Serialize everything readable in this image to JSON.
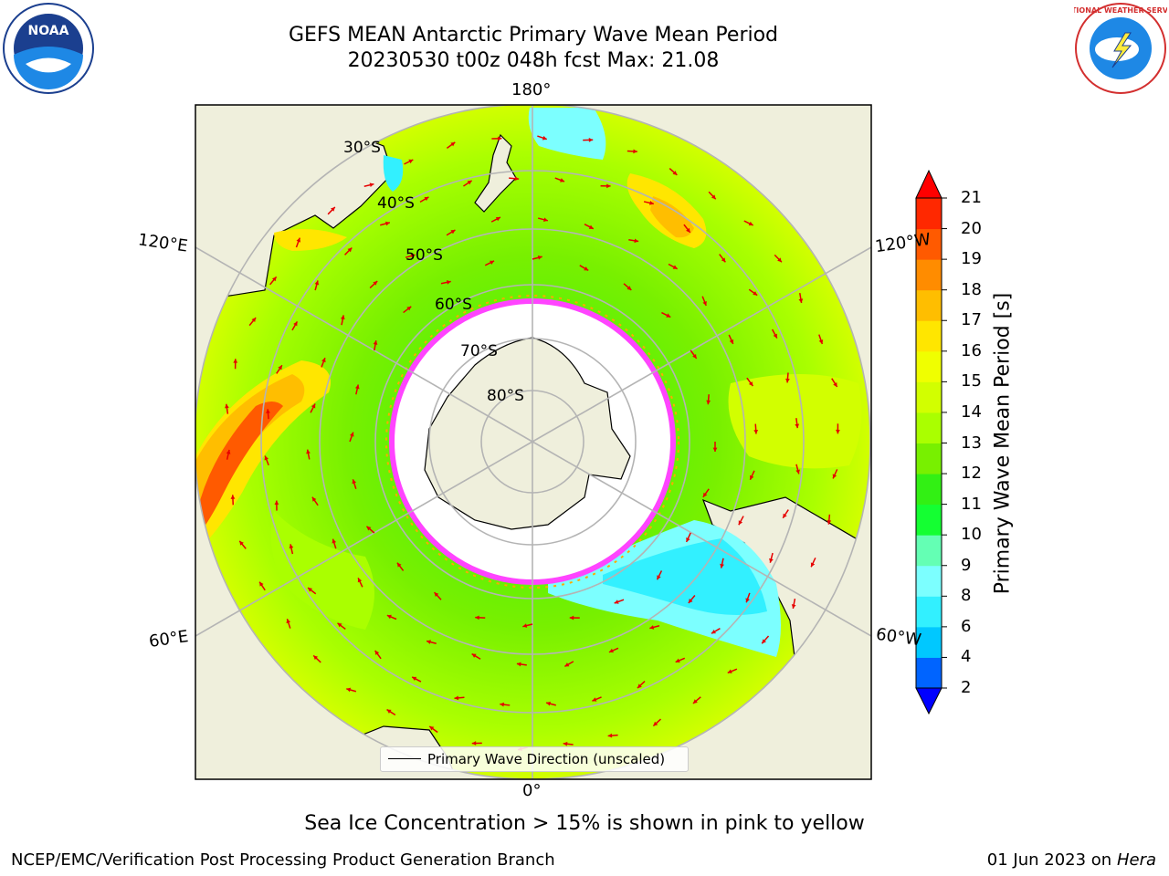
{
  "header": {
    "title_line1": "GEFS MEAN Antarctic Primary Wave Mean Period",
    "title_line2": "20230530 t00z 048h fcst   Max: 21.08"
  },
  "logos": {
    "left": {
      "text": "NOAA",
      "icon": "noaa-logo-icon"
    },
    "right": {
      "text": "NATIONAL WEATHER SERVICE",
      "icon": "nws-logo-icon"
    }
  },
  "map": {
    "projection": "south-polar-stereographic",
    "longitude_labels": [
      "180°",
      "120°E",
      "120°W",
      "60°E",
      "60°W",
      "0°"
    ],
    "latitude_labels": [
      "30°S",
      "40°S",
      "50°S",
      "60°S",
      "70°S",
      "80°S"
    ],
    "land_color": "#efefdc",
    "ice_color": "#ffffff",
    "ice_edge_colors": [
      "#ff44ff",
      "#ffaa00",
      "#ffff00"
    ],
    "arrow_color": "#e60000"
  },
  "colorbar": {
    "title": "Primary Wave Mean Period [s]",
    "ticks": [
      "2",
      "4",
      "6",
      "8",
      "9",
      "10",
      "11",
      "12",
      "13",
      "14",
      "15",
      "16",
      "17",
      "18",
      "19",
      "20",
      "21"
    ],
    "colors": [
      "#0064ff",
      "#00c8ff",
      "#32f0ff",
      "#7cffff",
      "#64ffb4",
      "#14ff32",
      "#32f014",
      "#78f000",
      "#aaff00",
      "#d2ff00",
      "#f0ff00",
      "#ffe600",
      "#ffbe00",
      "#ff8c00",
      "#ff5a00",
      "#ff2800"
    ],
    "extend_low_color": "#0000ff",
    "extend_high_color": "#ff0000"
  },
  "legend": {
    "label": "Primary Wave Direction (unscaled)"
  },
  "subtitle": "Sea Ice Concentration > 15% is shown in pink to yellow",
  "footer": {
    "left": "NCEP/EMC/Verification Post Processing Product Generation Branch",
    "right_date": "01 Jun 2023 on",
    "right_host": "Hera"
  }
}
